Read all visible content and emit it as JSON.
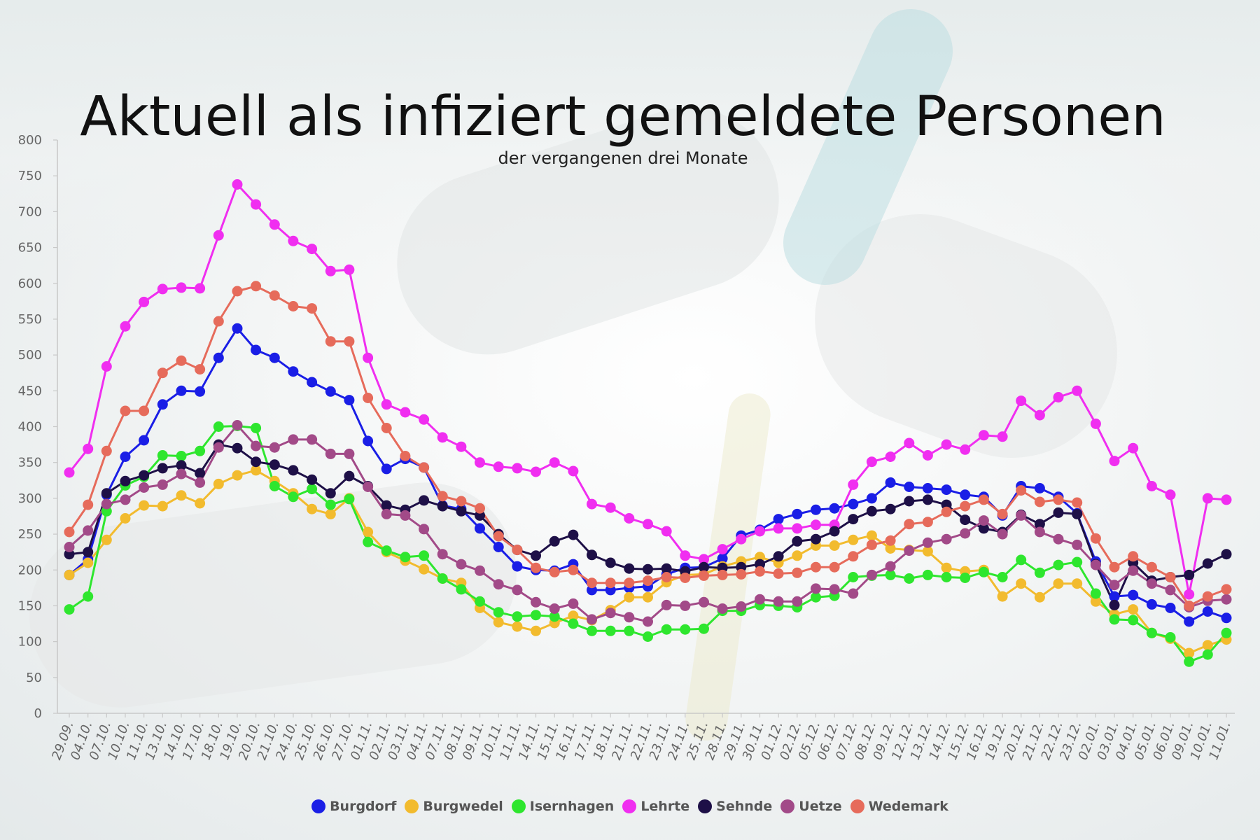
{
  "chart_data": {
    "type": "line",
    "title": "Aktuell als infiziert gemeldete Personen",
    "subtitle": "der vergangenen drei Monate",
    "xlabel": "",
    "ylabel": "",
    "ylim": [
      0,
      800
    ],
    "yticks": [
      0,
      50,
      100,
      150,
      200,
      250,
      300,
      350,
      400,
      450,
      500,
      550,
      600,
      650,
      700,
      750,
      800
    ],
    "grid": false,
    "legend_position": "bottom",
    "x": [
      "29.09.",
      "04.10.",
      "07.10.",
      "10.10.",
      "11.10.",
      "13.10.",
      "14.10.",
      "17.10.",
      "18.10.",
      "19.10.",
      "20.10.",
      "21.10.",
      "24.10.",
      "25.10.",
      "26.10.",
      "27.10.",
      "01.11.",
      "02.11.",
      "03.11.",
      "04.11.",
      "07.11.",
      "08.11.",
      "09.11.",
      "10.11.",
      "11.11.",
      "14.11.",
      "15.11.",
      "16.11.",
      "17.11.",
      "18.11.",
      "21.11.",
      "22.11.",
      "23.11.",
      "24.11.",
      "25.11.",
      "28.11.",
      "29.11.",
      "30.11.",
      "01.12.",
      "02.12.",
      "05.12.",
      "06.12.",
      "07.12.",
      "08.12.",
      "09.12.",
      "12.12.",
      "13.12.",
      "14.12.",
      "15.12.",
      "16.12.",
      "19.12.",
      "20.12.",
      "21.12.",
      "22.12.",
      "23.12.",
      "02.01.",
      "03.01.",
      "04.01.",
      "05.01.",
      "06.01.",
      "09.01.",
      "10.01.",
      "11.01."
    ],
    "series": [
      {
        "name": "Burgdorf",
        "color": "#1a1ee6",
        "values": [
          193,
          215,
          305,
          358,
          381,
          431,
          450,
          449,
          496,
          537,
          507,
          496,
          477,
          462,
          449,
          437,
          380,
          341,
          355,
          343,
          290,
          285,
          258,
          232,
          205,
          200,
          199,
          208,
          172,
          172,
          175,
          177,
          194,
          203,
          204,
          216,
          248,
          256,
          271,
          278,
          284,
          286,
          292,
          300,
          322,
          316,
          314,
          312,
          305,
          302,
          276,
          317,
          314,
          302,
          279,
          212,
          163,
          165,
          152,
          147,
          128,
          142,
          133
        ]
      },
      {
        "name": "Burgwedel",
        "color": "#f2bb2e",
        "values": [
          193,
          210,
          242,
          272,
          290,
          289,
          304,
          293,
          320,
          332,
          339,
          324,
          307,
          285,
          278,
          300,
          253,
          225,
          213,
          201,
          188,
          182,
          147,
          127,
          121,
          115,
          126,
          136,
          130,
          144,
          162,
          162,
          183,
          193,
          194,
          205,
          212,
          218,
          210,
          220,
          234,
          234,
          242,
          248,
          230,
          228,
          226,
          203,
          198,
          200,
          163,
          181,
          162,
          181,
          181,
          156,
          138,
          145,
          112,
          104,
          84,
          95,
          103
        ]
      },
      {
        "name": "Isernhagen",
        "color": "#2ee62e",
        "values": [
          145,
          163,
          282,
          318,
          330,
          360,
          359,
          366,
          400,
          401,
          398,
          317,
          302,
          313,
          291,
          299,
          239,
          227,
          218,
          220,
          188,
          173,
          156,
          141,
          135,
          137,
          135,
          125,
          115,
          115,
          115,
          107,
          117,
          117,
          118,
          143,
          143,
          151,
          150,
          148,
          162,
          164,
          190,
          192,
          193,
          188,
          193,
          190,
          189,
          197,
          190,
          214,
          196,
          207,
          211,
          167,
          131,
          130,
          112,
          106,
          72,
          82,
          112
        ]
      },
      {
        "name": "Lehrte",
        "color": "#f02ef0",
        "values": [
          336,
          369,
          484,
          540,
          574,
          592,
          594,
          593,
          667,
          738,
          710,
          682,
          659,
          648,
          617,
          619,
          496,
          431,
          420,
          410,
          385,
          372,
          350,
          344,
          342,
          337,
          350,
          338,
          292,
          287,
          272,
          264,
          254,
          220,
          215,
          229,
          243,
          254,
          258,
          258,
          263,
          263,
          319,
          351,
          358,
          377,
          360,
          375,
          368,
          388,
          386,
          436,
          416,
          441,
          450,
          404,
          352,
          370,
          317,
          305,
          166,
          300,
          298
        ]
      },
      {
        "name": "Sehnde",
        "color": "#1e1047",
        "values": [
          222,
          225,
          307,
          324,
          332,
          342,
          346,
          335,
          375,
          370,
          351,
          347,
          339,
          326,
          307,
          331,
          317,
          290,
          284,
          297,
          289,
          282,
          276,
          250,
          228,
          220,
          240,
          249,
          221,
          210,
          202,
          201,
          202,
          198,
          204,
          203,
          204,
          208,
          219,
          240,
          243,
          254,
          271,
          282,
          285,
          296,
          298,
          291,
          270,
          258,
          253,
          277,
          264,
          280,
          278,
          208,
          151,
          210,
          185,
          190,
          193,
          209,
          222
        ]
      },
      {
        "name": "Uetze",
        "color": "#a24a88",
        "values": [
          232,
          255,
          292,
          298,
          315,
          319,
          334,
          322,
          371,
          402,
          373,
          371,
          382,
          382,
          362,
          362,
          316,
          278,
          276,
          257,
          222,
          208,
          199,
          180,
          172,
          155,
          146,
          153,
          131,
          140,
          134,
          128,
          151,
          150,
          155,
          146,
          149,
          159,
          156,
          156,
          174,
          173,
          167,
          193,
          205,
          227,
          238,
          243,
          251,
          269,
          250,
          276,
          253,
          243,
          235,
          207,
          179,
          199,
          181,
          172,
          148,
          157,
          159
        ]
      },
      {
        "name": "Wedemark",
        "color": "#e66b5b",
        "values": [
          253,
          291,
          366,
          422,
          422,
          475,
          492,
          480,
          547,
          589,
          596,
          583,
          568,
          565,
          519,
          519,
          440,
          398,
          359,
          343,
          303,
          296,
          286,
          247,
          228,
          203,
          197,
          200,
          182,
          182,
          182,
          185,
          190,
          189,
          192,
          193,
          194,
          198,
          195,
          196,
          204,
          204,
          219,
          235,
          241,
          264,
          267,
          281,
          289,
          298,
          278,
          311,
          295,
          298,
          294,
          244,
          204,
          219,
          204,
          190,
          150,
          163,
          173
        ]
      }
    ]
  }
}
